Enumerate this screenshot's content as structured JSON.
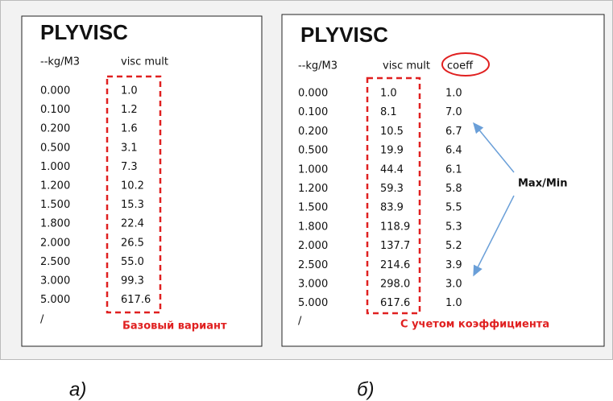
{
  "left": {
    "title": "PLYVISC",
    "headers": [
      "--kg/M3",
      "visc mult"
    ],
    "rows": [
      [
        "0.000",
        "1.0"
      ],
      [
        "0.100",
        "1.2"
      ],
      [
        "0.200",
        "1.6"
      ],
      [
        "0.500",
        "3.1"
      ],
      [
        "1.000",
        "7.3"
      ],
      [
        "1.200",
        "10.2"
      ],
      [
        "1.500",
        "15.3"
      ],
      [
        "1.800",
        "22.4"
      ],
      [
        "2.000",
        "26.5"
      ],
      [
        "2.500",
        "55.0"
      ],
      [
        "3.000",
        "99.3"
      ],
      [
        "5.000",
        "617.6"
      ]
    ],
    "end": "/",
    "note": "Базовый вариант",
    "caption": "а)"
  },
  "right": {
    "title": "PLYVISC",
    "headers": [
      "--kg/M3",
      "visc mult",
      "coeff"
    ],
    "rows": [
      [
        "0.000",
        "1.0",
        "1.0"
      ],
      [
        "0.100",
        "8.1",
        "7.0"
      ],
      [
        "0.200",
        "10.5",
        "6.7"
      ],
      [
        "0.500",
        "19.9",
        "6.4"
      ],
      [
        "1.000",
        "44.4",
        "6.1"
      ],
      [
        "1.200",
        "59.3",
        "5.8"
      ],
      [
        "1.500",
        "83.9",
        "5.5"
      ],
      [
        "1.800",
        "118.9",
        "5.3"
      ],
      [
        "2.000",
        "137.7",
        "5.2"
      ],
      [
        "2.500",
        "214.6",
        "3.9"
      ],
      [
        "3.000",
        "298.0",
        "3.0"
      ],
      [
        "5.000",
        "617.6",
        "1.0"
      ]
    ],
    "end": "/",
    "note": "С учетом коэффициента",
    "annotation": "Max/Min",
    "caption": "б)"
  }
}
